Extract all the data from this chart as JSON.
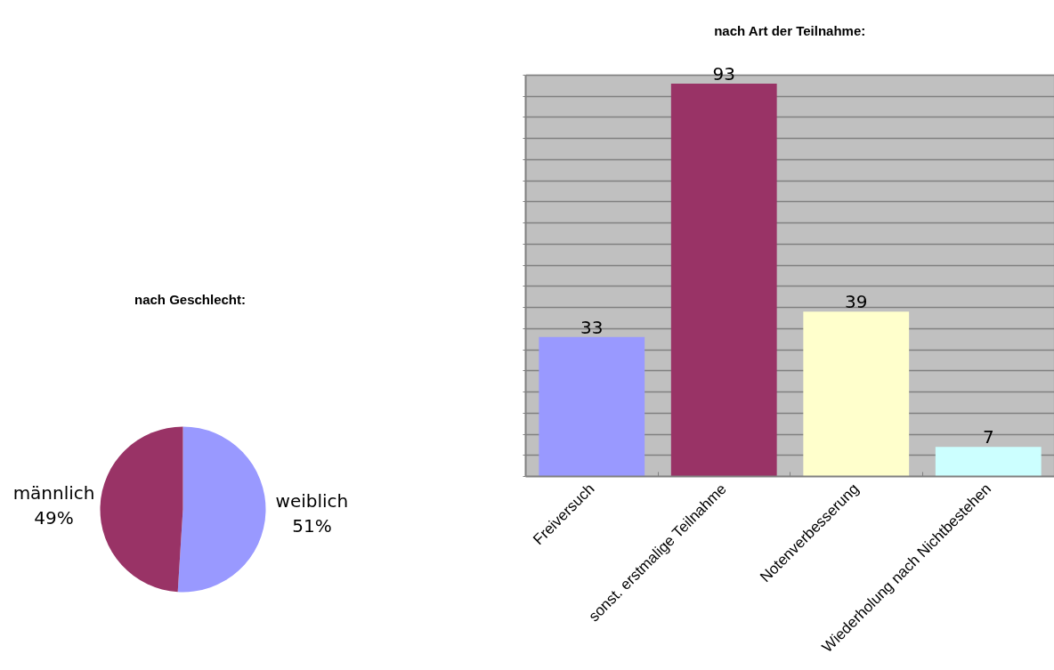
{
  "chart_data": [
    {
      "type": "pie",
      "title": "nach Geschlecht:",
      "categories": [
        "weiblich",
        "männlich"
      ],
      "values": [
        51,
        49
      ],
      "colors": [
        "#9999ff",
        "#993366"
      ],
      "value_labels": [
        "51%",
        "49%"
      ]
    },
    {
      "type": "bar",
      "title": "nach Art der Teilnahme:",
      "categories": [
        "Freiversuch",
        "sonst. erstmalige Teilnahme",
        "Notenverbesserung",
        "Wiederholung nach Nichtbestehen"
      ],
      "values": [
        33,
        93,
        39,
        7
      ],
      "colors": [
        "#9999ff",
        "#993366",
        "#ffffcc",
        "#ccffff"
      ],
      "ylim": [
        0,
        95
      ],
      "yticks": [
        {
          "value": 0,
          "label": null
        },
        {
          "value": 5,
          "label": null
        },
        {
          "value": 10,
          "label": null
        },
        {
          "value": 15,
          "label": null
        },
        {
          "value": 20,
          "label": null
        },
        {
          "value": 25,
          "label": null
        },
        {
          "value": 30,
          "label": null
        },
        {
          "value": 35,
          "label": null
        },
        {
          "value": 40,
          "label": null
        },
        {
          "value": 45,
          "label": null
        },
        {
          "value": 50,
          "label": null
        },
        {
          "value": 55,
          "label": null
        },
        {
          "value": 60,
          "label": null
        },
        {
          "value": 65,
          "label": null
        },
        {
          "value": 70,
          "label": null
        },
        {
          "value": 75,
          "label": null
        },
        {
          "value": 80,
          "label": null
        },
        {
          "value": 85,
          "label": null
        },
        {
          "value": 90,
          "label": null
        },
        {
          "value": 95,
          "label": null
        }
      ],
      "grid": "y",
      "tick_labels": "x",
      "data_labels": true
    }
  ]
}
